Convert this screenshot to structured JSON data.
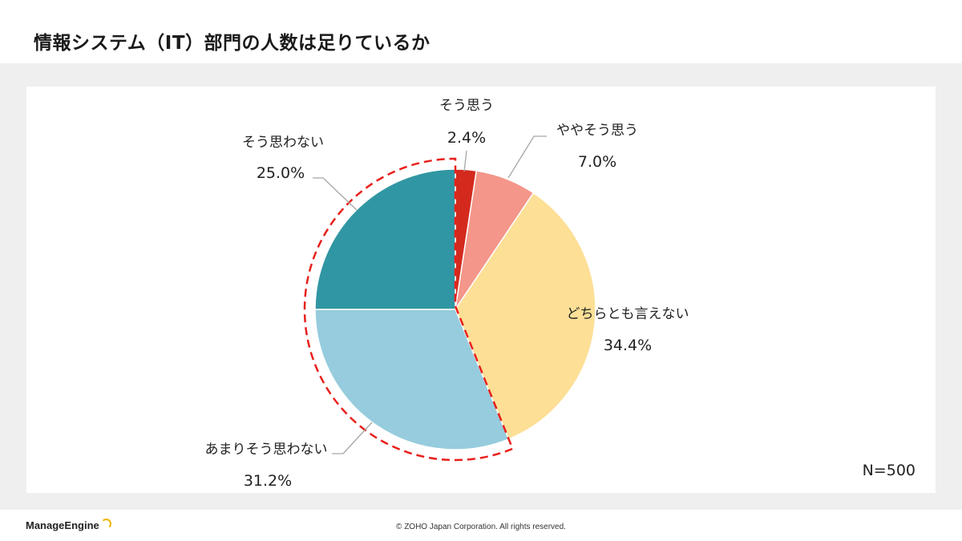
{
  "title": "情報システム（IT）部門の人数は足りているか",
  "chart_data": {
    "type": "pie",
    "title": "情報システム（IT）部門の人数は足りているか",
    "start_angle_deg": 0,
    "direction": "clockwise",
    "slices": [
      {
        "label": "そう思う",
        "value": 2.4,
        "value_text": "2.4%",
        "color": "#d42a1e"
      },
      {
        "label": "ややそう思う",
        "value": 7.0,
        "value_text": "7.0%",
        "color": "#f4968a"
      },
      {
        "label": "どちらとも言えない",
        "value": 34.4,
        "value_text": "34.4%",
        "color": "#fddf96"
      },
      {
        "label": "あまりそう思わない",
        "value": 31.2,
        "value_text": "31.2%",
        "color": "#96ccdd"
      },
      {
        "label": "そう思わない",
        "value": 25.0,
        "value_text": "25.0%",
        "color": "#3196a3"
      }
    ],
    "highlight": {
      "slices": [
        "あまりそう思わない",
        "そう思わない"
      ],
      "style": "red dashed outline"
    },
    "sample_size": "N=500"
  },
  "footer": {
    "logo": "ManageEngine",
    "copyright": "© ZOHO Japan Corporation. All rights reserved."
  },
  "colors": {
    "highlight": "#e8201c",
    "band": "#efefef"
  }
}
